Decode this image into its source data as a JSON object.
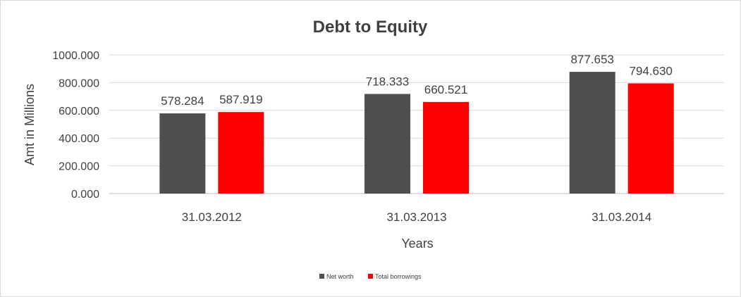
{
  "chart_data": {
    "type": "bar",
    "title": "Debt to Equity",
    "xlabel": "Years",
    "ylabel": "Amt in Millions",
    "categories": [
      "31.03.2012",
      "31.03.2013",
      "31.03.2014"
    ],
    "series": [
      {
        "name": "Net worth",
        "color": "#4f4f4f",
        "values": [
          578.284,
          718.333,
          877.653
        ],
        "labels": [
          "578.284",
          "718.333",
          "877.653"
        ]
      },
      {
        "name": "Total borrowings",
        "color": "#ff0000",
        "values": [
          587.919,
          660.521,
          794.63
        ],
        "labels": [
          "587.919",
          "660.521",
          "794.630"
        ]
      }
    ],
    "ylim": [
      0,
      1000
    ],
    "yticks": [
      0,
      200,
      400,
      600,
      800,
      1000
    ],
    "ytick_labels": [
      "0.000",
      "200.000",
      "400.000",
      "600.000",
      "800.000",
      "1000.000"
    ],
    "grid": true,
    "legend_position": "bottom"
  }
}
